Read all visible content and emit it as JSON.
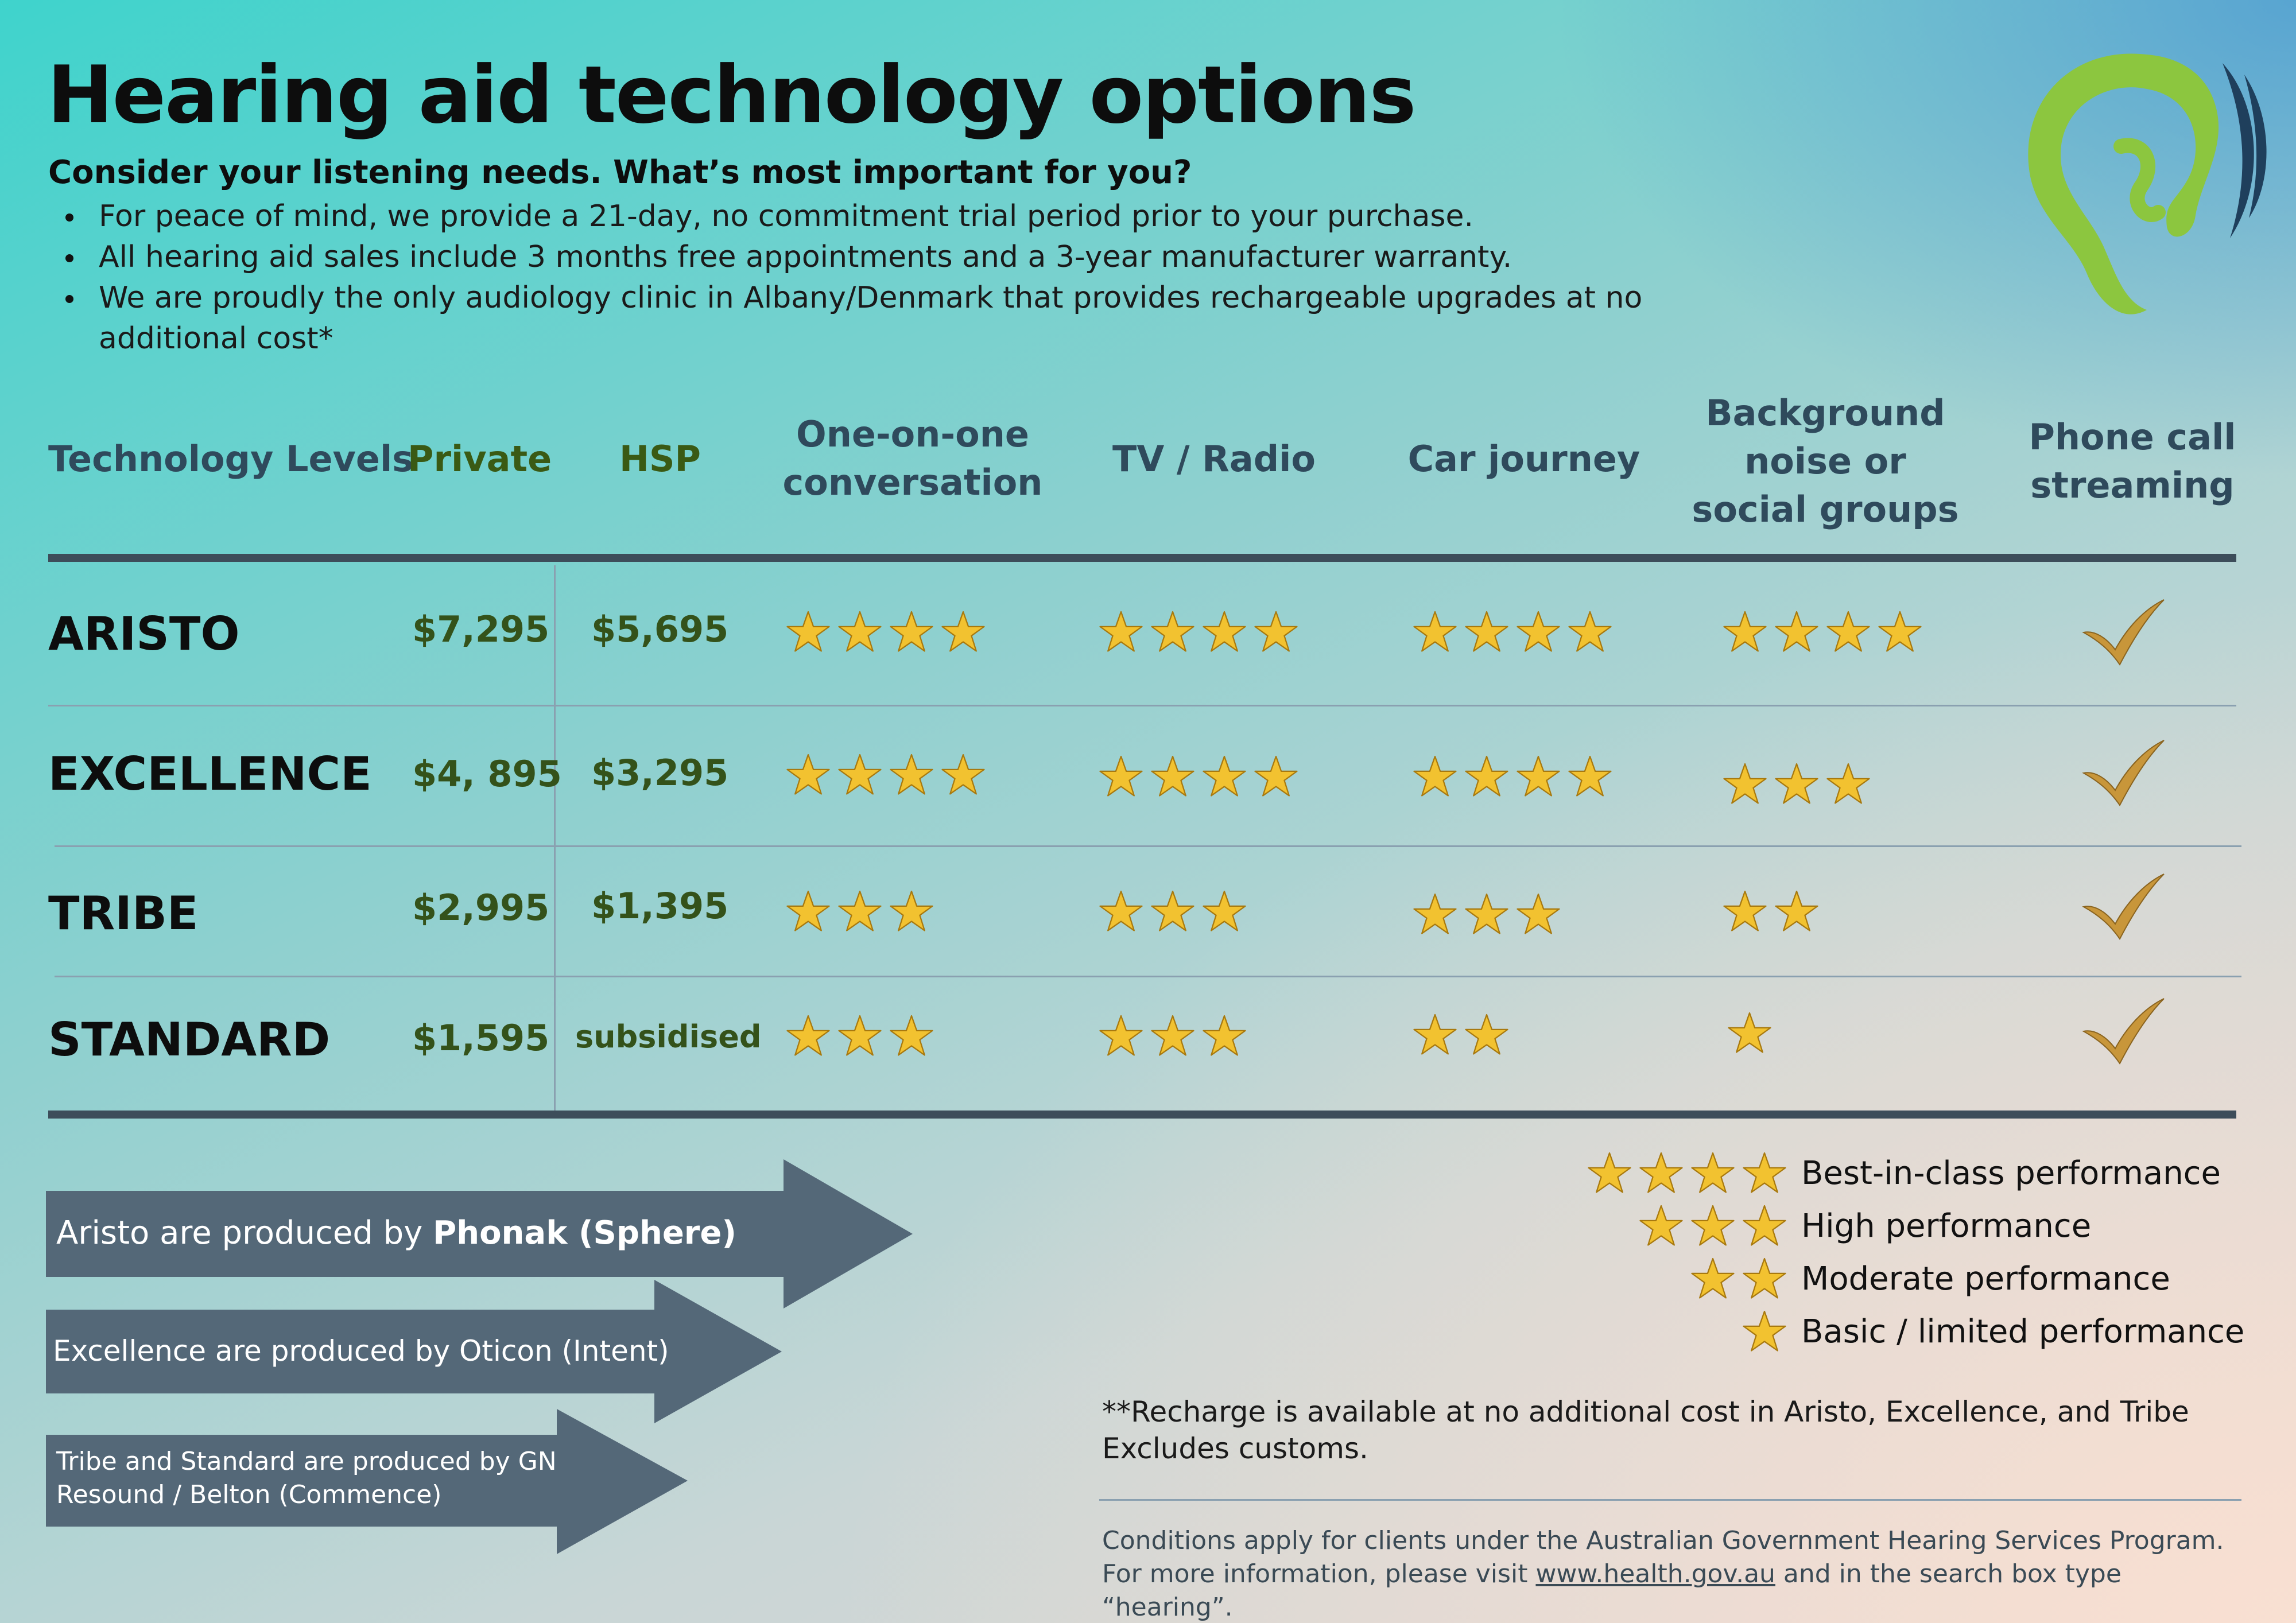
{
  "header": {
    "title": "Hearing aid technology options",
    "subtitle": "Consider your listening needs. What’s most important for you?",
    "bullets": [
      "For peace of mind, we provide a 21-day, no commitment trial period prior to your purchase.",
      "All hearing aid sales include 3 months free appointments and a 3-year manufacturer warranty.",
      "We are proudly the only audiology clinic in Albany/Denmark that provides rechargeable upgrades at no additional cost*"
    ]
  },
  "logo": {
    "icon": "ear-logo-icon",
    "colors": {
      "ear": "#8cc63f",
      "waves": "#1f3f5c"
    }
  },
  "table": {
    "columns": {
      "levels": "Technology Levels",
      "private": "Private",
      "hsp": "HSP",
      "conversation": "One-on-one conversation",
      "tv": "TV / Radio",
      "car": "Car journey",
      "background": "Background noise or social groups",
      "phone": "Phone call streaming"
    },
    "rows": [
      {
        "level": "ARISTO",
        "private": "$7,295",
        "hsp": "$5,695",
        "conversation": 4,
        "tv": 4,
        "car": 4,
        "background": 4,
        "phone": true
      },
      {
        "level": "EXCELLENCE",
        "private": "$4, 895",
        "hsp": "$3,295",
        "conversation": 4,
        "tv": 4,
        "car": 4,
        "background": 3,
        "phone": true
      },
      {
        "level": "TRIBE",
        "private": "$2,995",
        "hsp": "$1,395",
        "conversation": 3,
        "tv": 3,
        "car": 3,
        "background": 2,
        "phone": true
      },
      {
        "level": "STANDARD",
        "private": "$1,595",
        "hsp": "subsidised",
        "conversation": 3,
        "tv": 3,
        "car": 2,
        "background": 1,
        "phone": true
      }
    ]
  },
  "manufacturers": {
    "aristo_prefix": "Aristo are produced by ",
    "aristo_brand": "Phonak (Sphere)",
    "excellence": "Excellence are produced by Oticon (Intent)",
    "tribe_line1": "Tribe and Standard are produced by GN",
    "tribe_line2": "Resound / Belton (Commence)"
  },
  "legend": [
    {
      "stars": 4,
      "label": "Best-in-class performance"
    },
    {
      "stars": 3,
      "label": "High performance"
    },
    {
      "stars": 2,
      "label": "Moderate performance"
    },
    {
      "stars": 1,
      "label": "Basic / limited performance"
    }
  ],
  "notes": {
    "recharge_line1": "**Recharge is available at no additional cost in Aristo, Excellence, and Tribe",
    "recharge_line2": "Excludes customs.",
    "conditions_line1": "Conditions apply for clients under the Australian Government Hearing Services Program.",
    "conditions_line2_prefix": "For more information, please visit ",
    "conditions_link": "www.health.gov.au",
    "conditions_line2_suffix": " and in the search box type “hearing”."
  },
  "colors": {
    "star_fill": "#f2c230",
    "tick_fill": "#c8963a",
    "arrow": "#546878",
    "price_green": "#34521a",
    "header_slate": "#2f4a5c"
  }
}
